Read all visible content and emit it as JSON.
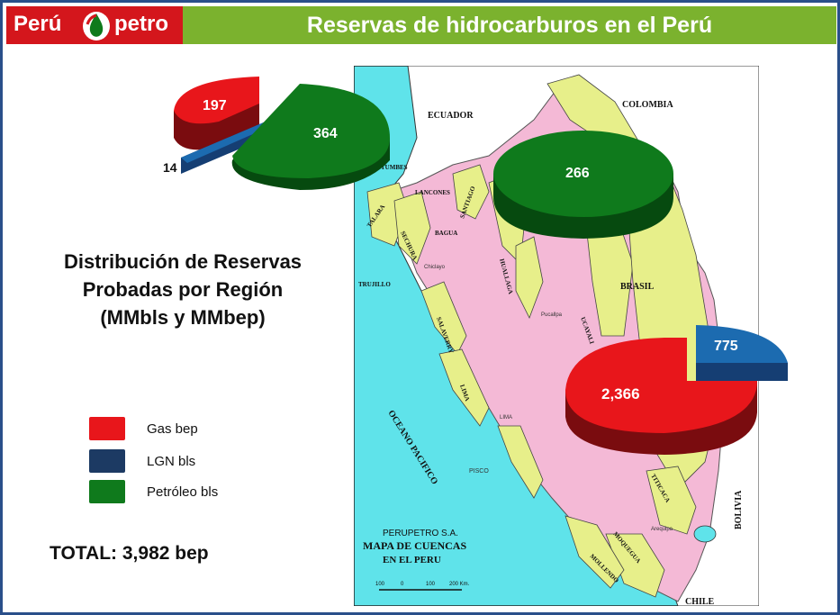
{
  "header": {
    "logo_left": "Perú",
    "logo_right": "petro",
    "title": "Reservas de hidrocarburos en el Perú"
  },
  "subtitle": [
    "Distribución de Reservas",
    "Probadas por Región",
    "(MMbls y MMbep)"
  ],
  "legend": [
    {
      "label": "Gas bep",
      "color": "#e8161b"
    },
    {
      "label": "LGN bls",
      "color": "#1c3a63"
    },
    {
      "label": "Petróleo bls",
      "color": "#0f7a1c"
    }
  ],
  "total": "TOTAL:  3,982 bep",
  "pies": {
    "north": {
      "gas": "197",
      "lgn": "14",
      "oil": "364"
    },
    "northeast": {
      "oil": "266"
    },
    "south": {
      "gas": "2,366",
      "lgn": "775"
    }
  },
  "map": {
    "countries": {
      "ecuador": "ECUADOR",
      "colombia": "COLOMBIA",
      "brasil": "BRASIL",
      "bolivia": "BOLIVIA",
      "chile": "CHILE"
    },
    "ocean": "OCEANO PACIFICO",
    "places": {
      "tumbes": "TUMBES",
      "lancones": "LANCONES",
      "talara": "TALARA",
      "sechura": "SECHURA",
      "bagua": "BAGUA",
      "santiago": "SANTIAGO",
      "trujillo": "TRUJILLO",
      "chiclayo": "Chiclayo",
      "huallaga": "HUALLAGA",
      "salaverry": "SALAVERRY",
      "lima_basin": "LIMA",
      "lima_city": "LIMA",
      "pisco": "PISCO",
      "pucallpa": "Pucallpa",
      "ucayali": "UCAYALI",
      "titicaca": "TITICACA",
      "moquegua": "MOQUEGUA",
      "mollendo": "MOLLENDO",
      "arequipa": "Arequipa"
    },
    "caption_company": "PERUPETRO S.A.",
    "caption_title": "MAPA DE CUENCAS",
    "caption_sub": "EN EL PERU",
    "scale_labels": [
      "100",
      "0",
      "100",
      "200 Km."
    ]
  },
  "colors": {
    "gas": "#e8161b",
    "lgn": "#1c6bb0",
    "oil": "#0f7a1c",
    "sea": "#5fe3ea",
    "land": "#ffffff",
    "basin": "#f4b9d6",
    "yellow_basin": "#e7ef8a",
    "header_green": "#7bb22e",
    "header_red": "#d4161c"
  }
}
